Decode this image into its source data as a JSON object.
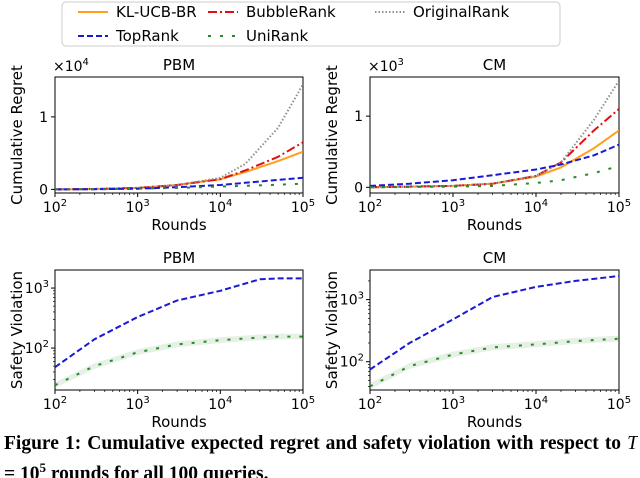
{
  "legend": {
    "entries": [
      {
        "name": "KL-UCB-BR",
        "color": "#ff9f1c",
        "dash": "solid"
      },
      {
        "name": "BubbleRank",
        "color": "#e01010",
        "dash": "dashdot"
      },
      {
        "name": "OriginalRank",
        "color": "#8f8f8f",
        "dash": "dotted"
      },
      {
        "name": "TopRank",
        "color": "#1a1ad6",
        "dash": "dashed"
      },
      {
        "name": "UniRank",
        "color": "#2a8a2a",
        "dash": "loosedash"
      }
    ]
  },
  "chart_data": [
    {
      "type": "line",
      "title": "PBM",
      "xlabel": "Rounds",
      "ylabel": "Cumulative Regret",
      "xscale": "log",
      "yscale": "linear",
      "xlim": [
        100,
        100000
      ],
      "ylim": [
        -0.05,
        1.55
      ],
      "y_multiplier": "×10^4",
      "xticks": [
        {
          "v": 100,
          "m": "10",
          "e": "2"
        },
        {
          "v": 1000,
          "m": "10",
          "e": "3"
        },
        {
          "v": 10000,
          "m": "10",
          "e": "4"
        },
        {
          "v": 100000,
          "m": "10",
          "e": "5"
        }
      ],
      "yticks": [
        {
          "v": 0,
          "t": "0"
        },
        {
          "v": 1,
          "t": "1"
        }
      ],
      "x": [
        100,
        300,
        1000,
        3000,
        10000,
        20000,
        50000,
        100000
      ],
      "series": [
        {
          "name": "KL-UCB-BR",
          "values": [
            0.0,
            0.005,
            0.02,
            0.06,
            0.14,
            0.24,
            0.39,
            0.52
          ]
        },
        {
          "name": "BubbleRank",
          "values": [
            0.0,
            0.005,
            0.02,
            0.06,
            0.14,
            0.26,
            0.45,
            0.65
          ]
        },
        {
          "name": "OriginalRank",
          "values": [
            0.0,
            0.005,
            0.02,
            0.06,
            0.16,
            0.35,
            0.85,
            1.45
          ]
        },
        {
          "name": "TopRank",
          "values": [
            0.0,
            0.003,
            0.01,
            0.03,
            0.06,
            0.09,
            0.13,
            0.16
          ]
        },
        {
          "name": "UniRank",
          "values": [
            0.0,
            0.003,
            0.01,
            0.02,
            0.04,
            0.05,
            0.065,
            0.08
          ]
        }
      ]
    },
    {
      "type": "line",
      "title": "CM",
      "xlabel": "Rounds",
      "ylabel": "Cumulative Regret",
      "xscale": "log",
      "yscale": "linear",
      "xlim": [
        100,
        100000
      ],
      "ylim": [
        -0.08,
        1.55
      ],
      "y_multiplier": "×10^3",
      "xticks": [
        {
          "v": 100,
          "m": "10",
          "e": "2"
        },
        {
          "v": 1000,
          "m": "10",
          "e": "3"
        },
        {
          "v": 10000,
          "m": "10",
          "e": "4"
        },
        {
          "v": 100000,
          "m": "10",
          "e": "5"
        }
      ],
      "yticks": [
        {
          "v": 0,
          "t": "0"
        },
        {
          "v": 1,
          "t": "1"
        }
      ],
      "x": [
        100,
        300,
        1000,
        3000,
        10000,
        20000,
        50000,
        100000
      ],
      "series": [
        {
          "name": "KL-UCB-BR",
          "values": [
            0.0,
            0.01,
            0.02,
            0.05,
            0.15,
            0.28,
            0.55,
            0.8
          ]
        },
        {
          "name": "BubbleRank",
          "values": [
            0.0,
            0.01,
            0.02,
            0.05,
            0.16,
            0.35,
            0.8,
            1.1
          ]
        },
        {
          "name": "OriginalRank",
          "values": [
            0.0,
            0.01,
            0.02,
            0.05,
            0.16,
            0.35,
            0.95,
            1.5
          ]
        },
        {
          "name": "TopRank",
          "values": [
            0.02,
            0.05,
            0.1,
            0.17,
            0.25,
            0.32,
            0.45,
            0.6
          ]
        },
        {
          "name": "UniRank",
          "values": [
            0.0,
            0.005,
            0.01,
            0.02,
            0.06,
            0.1,
            0.2,
            0.3
          ]
        }
      ]
    },
    {
      "type": "line",
      "title": "PBM",
      "xlabel": "Rounds",
      "ylabel": "Safety Violation",
      "xscale": "log",
      "yscale": "log",
      "xlim": [
        100,
        100000
      ],
      "ylim": [
        20,
        2000
      ],
      "xticks": [
        {
          "v": 100,
          "m": "10",
          "e": "2"
        },
        {
          "v": 1000,
          "m": "10",
          "e": "3"
        },
        {
          "v": 10000,
          "m": "10",
          "e": "4"
        },
        {
          "v": 100000,
          "m": "10",
          "e": "5"
        }
      ],
      "yticks": [
        {
          "v": 100,
          "m": "10",
          "e": "2"
        },
        {
          "v": 1000,
          "m": "10",
          "e": "3"
        }
      ],
      "x": [
        100,
        300,
        1000,
        3000,
        10000,
        30000,
        50000,
        100000
      ],
      "series": [
        {
          "name": "TopRank",
          "values": [
            48,
            140,
            330,
            620,
            900,
            1400,
            1450,
            1450
          ]
        },
        {
          "name": "UniRank",
          "values": [
            24,
            50,
            85,
            115,
            135,
            150,
            155,
            155
          ]
        }
      ]
    },
    {
      "type": "line",
      "title": "CM",
      "xlabel": "Rounds",
      "ylabel": "Safety Violation",
      "xscale": "log",
      "yscale": "log",
      "xlim": [
        100,
        100000
      ],
      "ylim": [
        35,
        3000
      ],
      "xticks": [
        {
          "v": 100,
          "m": "10",
          "e": "2"
        },
        {
          "v": 1000,
          "m": "10",
          "e": "3"
        },
        {
          "v": 10000,
          "m": "10",
          "e": "4"
        },
        {
          "v": 100000,
          "m": "10",
          "e": "5"
        }
      ],
      "yticks": [
        {
          "v": 100,
          "m": "10",
          "e": "2"
        },
        {
          "v": 1000,
          "m": "10",
          "e": "3"
        }
      ],
      "x": [
        100,
        300,
        1000,
        3000,
        10000,
        30000,
        100000
      ],
      "series": [
        {
          "name": "TopRank",
          "values": [
            75,
            200,
            480,
            1100,
            1600,
            2000,
            2400
          ]
        },
        {
          "name": "UniRank",
          "values": [
            40,
            85,
            130,
            170,
            190,
            215,
            235
          ]
        }
      ]
    }
  ],
  "caption": "Figure 1: Cumulative expected regret and safety violation with respect to T = 10^5 rounds for all 100 queries."
}
